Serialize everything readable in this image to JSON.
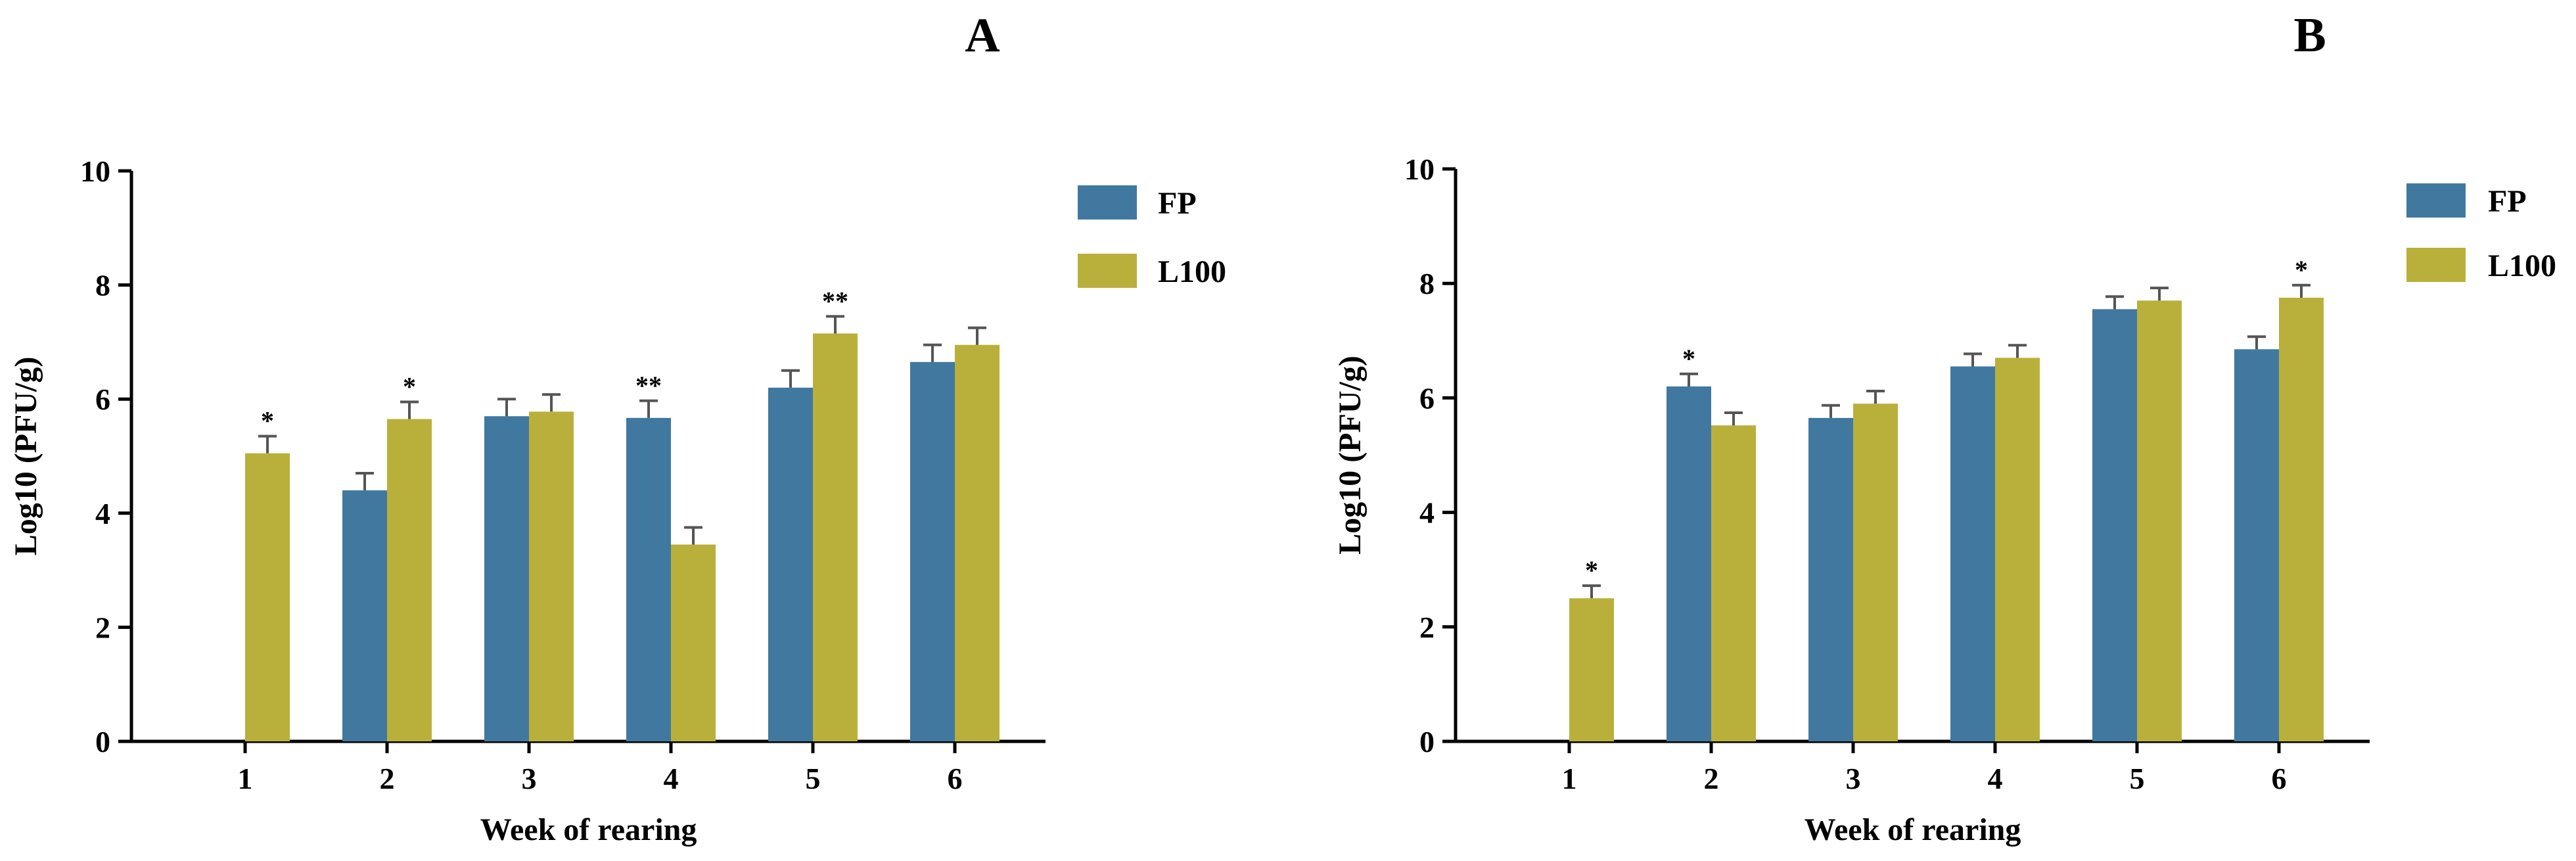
{
  "colors": {
    "FP": "#40789F",
    "L100": "#B9B03B",
    "error_bar": "#555555",
    "axis": "#000000"
  },
  "chart_data": [
    {
      "type": "bar",
      "panel": "A",
      "xlabel": "Week of rearing",
      "ylabel": "Log10 (PFU/g)",
      "ylim": [
        0,
        10
      ],
      "yticks": [
        0,
        2,
        4,
        6,
        8,
        10
      ],
      "categories": [
        "1",
        "2",
        "3",
        "4",
        "5",
        "6"
      ],
      "legend_position": "top-right",
      "series": [
        {
          "name": "FP",
          "color_key": "FP",
          "values": [
            null,
            4.4,
            5.7,
            5.67,
            6.2,
            6.65
          ],
          "errors": [
            null,
            0.3,
            0.3,
            0.3,
            0.3,
            0.3
          ],
          "sig": [
            "",
            "",
            "",
            "**",
            "",
            ""
          ]
        },
        {
          "name": "L100",
          "color_key": "L100",
          "values": [
            5.05,
            5.65,
            5.78,
            3.45,
            7.15,
            6.95
          ],
          "errors": [
            0.3,
            0.3,
            0.3,
            0.3,
            0.3,
            0.3
          ],
          "sig": [
            "*",
            "*",
            "",
            "",
            "**",
            ""
          ]
        }
      ]
    },
    {
      "type": "bar",
      "panel": "B",
      "xlabel": "Week of rearing",
      "ylabel": "Log10 (PFU/g)",
      "ylim": [
        0,
        10
      ],
      "yticks": [
        0,
        2,
        4,
        6,
        8,
        10
      ],
      "categories": [
        "1",
        "2",
        "3",
        "4",
        "5",
        "6"
      ],
      "legend_position": "top-right",
      "series": [
        {
          "name": "FP",
          "color_key": "FP",
          "values": [
            null,
            6.2,
            5.65,
            6.55,
            7.55,
            6.85
          ],
          "errors": [
            null,
            0.22,
            0.22,
            0.22,
            0.22,
            0.22
          ],
          "sig": [
            "",
            "*",
            "",
            "",
            "",
            ""
          ]
        },
        {
          "name": "L100",
          "color_key": "L100",
          "values": [
            2.5,
            5.52,
            5.9,
            6.7,
            7.7,
            7.75
          ],
          "errors": [
            0.22,
            0.22,
            0.22,
            0.22,
            0.22,
            0.22
          ],
          "sig": [
            "*",
            "",
            "",
            "",
            "",
            "*"
          ]
        }
      ]
    }
  ]
}
